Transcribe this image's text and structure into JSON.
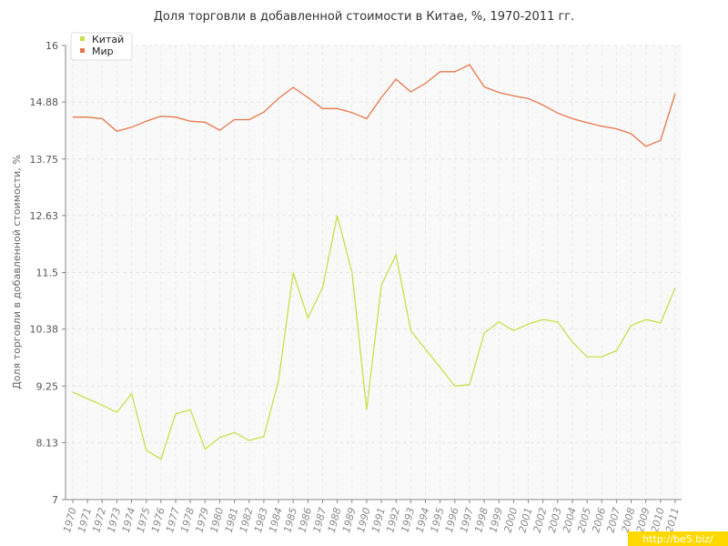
{
  "chart_data": {
    "type": "line",
    "title": "Доля торговли в добавленной стоимости в Китае, %, 1970-2011 гг.",
    "xlabel": "",
    "ylabel": "Доля торговли в добавленной стоимости, %",
    "ylim": [
      7,
      16
    ],
    "y_ticks": [
      "7",
      "8.13",
      "9.25",
      "10.38",
      "11.5",
      "12.63",
      "13.75",
      "14.88",
      "16"
    ],
    "x": [
      "1970",
      "1971",
      "1972",
      "1973",
      "1974",
      "1975",
      "1976",
      "1977",
      "1978",
      "1979",
      "1980",
      "1981",
      "1982",
      "1983",
      "1984",
      "1985",
      "1986",
      "1987",
      "1988",
      "1989",
      "1990",
      "1991",
      "1992",
      "1993",
      "1994",
      "1995",
      "1996",
      "1997",
      "1998",
      "1999",
      "2000",
      "2001",
      "2002",
      "2003",
      "2004",
      "2005",
      "2006",
      "2007",
      "2008",
      "2009",
      "2010",
      "2011"
    ],
    "series": [
      {
        "name": "Китай",
        "color": "#c8e04a",
        "values": [
          9.13,
          9.0,
          8.87,
          8.73,
          9.1,
          7.98,
          7.8,
          8.7,
          8.78,
          8.0,
          8.23,
          8.33,
          8.17,
          8.25,
          9.35,
          11.5,
          10.6,
          11.2,
          12.63,
          11.5,
          8.78,
          11.25,
          11.85,
          10.35,
          9.98,
          9.62,
          9.25,
          9.28,
          10.3,
          10.52,
          10.35,
          10.48,
          10.57,
          10.52,
          10.12,
          9.83,
          9.83,
          9.95,
          10.45,
          10.57,
          10.5,
          11.2
        ]
      },
      {
        "name": "Мир",
        "color": "#e8764a",
        "values": [
          14.58,
          14.58,
          14.55,
          14.3,
          14.38,
          14.5,
          14.6,
          14.58,
          14.5,
          14.48,
          14.32,
          14.53,
          14.53,
          14.68,
          14.95,
          15.17,
          14.97,
          14.75,
          14.75,
          14.67,
          14.55,
          14.97,
          15.33,
          15.08,
          15.25,
          15.48,
          15.48,
          15.62,
          15.18,
          15.07,
          15.0,
          14.95,
          14.82,
          14.66,
          14.55,
          14.47,
          14.4,
          14.35,
          14.25,
          14.0,
          14.12,
          15.05
        ]
      }
    ],
    "grid": true,
    "legend_position": "top-left"
  },
  "watermark": "http://be5.biz/"
}
